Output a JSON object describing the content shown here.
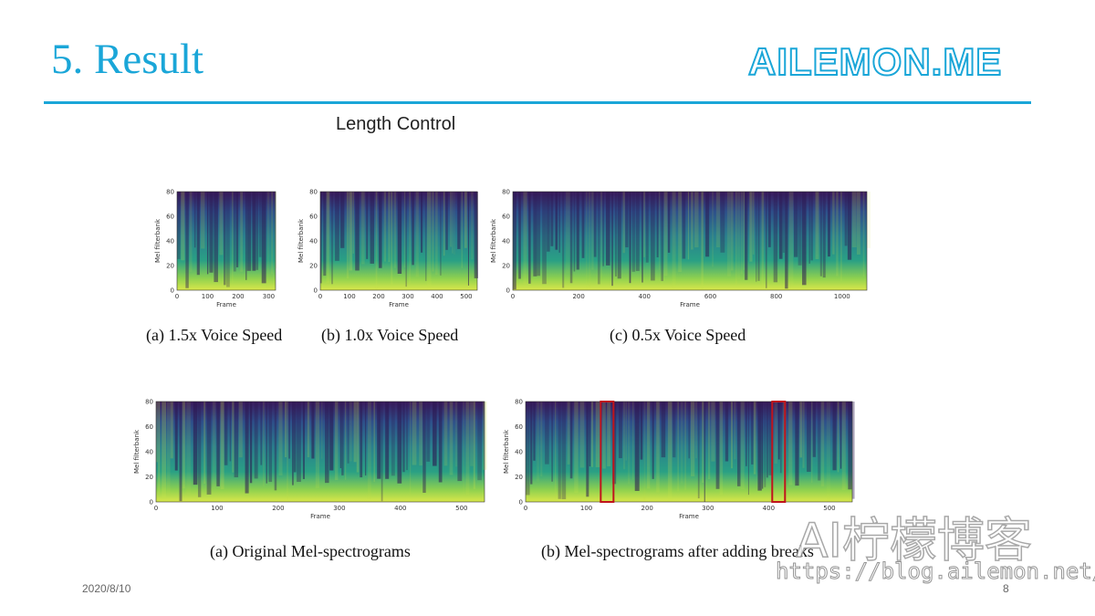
{
  "slide": {
    "title": "5. Result",
    "brand": "AILEMON.ME",
    "subtitle": "Length Control",
    "date": "2020/8/10",
    "page_number": "8"
  },
  "axes": {
    "ylabel": "Mel filterbank",
    "xlabel": "Frame",
    "yticks": [
      "0",
      "20",
      "40",
      "60",
      "80"
    ]
  },
  "figures": {
    "top": [
      {
        "caption": "(a) 1.5x Voice Speed",
        "xticks": [
          "0",
          "100",
          "200",
          "300"
        ]
      },
      {
        "caption": "(b) 1.0x Voice Speed",
        "xticks": [
          "0",
          "100",
          "200",
          "300",
          "400",
          "500"
        ]
      },
      {
        "caption": "(c) 0.5x Voice Speed",
        "xticks": [
          "0",
          "200",
          "400",
          "600",
          "800",
          "1000"
        ]
      }
    ],
    "bottom": [
      {
        "caption": "(a) Original Mel-spectrograms",
        "xticks": [
          "0",
          "100",
          "200",
          "300",
          "400",
          "500"
        ]
      },
      {
        "caption": "(b) Mel-spectrograms after adding breaks",
        "xticks": [
          "0",
          "100",
          "200",
          "300",
          "400",
          "500"
        ]
      }
    ]
  },
  "watermark": {
    "text": "AI柠檬博客",
    "url": "https://blog.ailemon.net/"
  },
  "colors": {
    "accent": "#1aa6d8",
    "spec_low": "#3b1a5c",
    "spec_mid": "#2a7f8e",
    "spec_high": "#d9e74a",
    "break_box": "#c0141c"
  }
}
